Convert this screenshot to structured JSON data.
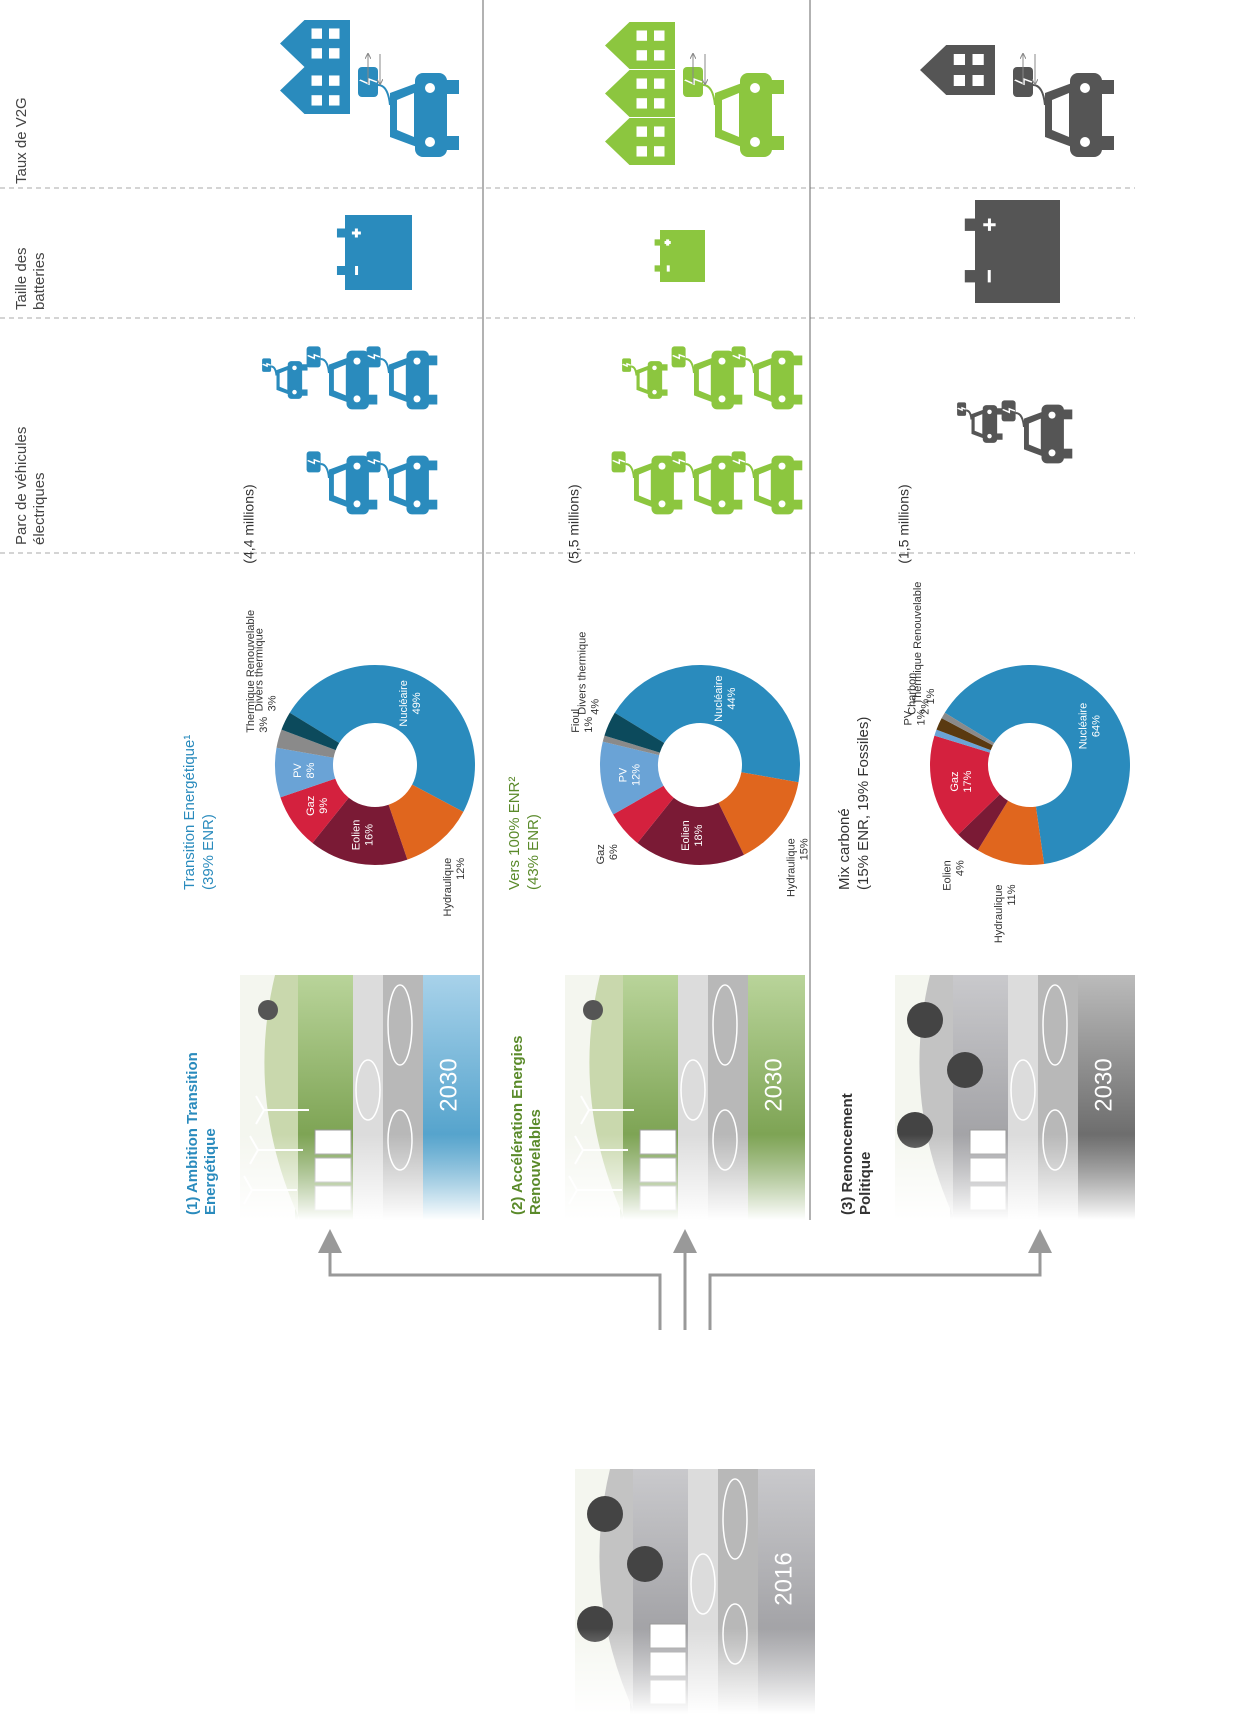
{
  "headers": [
    [
      "Parc de véhicules",
      "électriques"
    ],
    [
      "Taille des",
      "batteries"
    ],
    [
      "Taux de V2G"
    ]
  ],
  "start_year": "2016",
  "scenarios": [
    {
      "title": [
        "(1) Ambition Transition",
        "Energétique"
      ],
      "year": "2030",
      "fleet": "(4,4 millions)"
    },
    {
      "title": [
        "(2) Accélération Energies",
        "Renouvelables"
      ],
      "year": "2030",
      "fleet": "(5,5 millions)"
    },
    {
      "title": [
        "(3) Renoncement",
        "Politique"
      ],
      "year": "2030",
      "fleet": "(1,5 millions)"
    }
  ],
  "chart_data": [
    {
      "type": "pie",
      "title": "Transition Energétique¹",
      "subtitle": "(39% ENR)",
      "categories": [
        "Nucléaire",
        "Hydraulique",
        "Eolien",
        "Gaz",
        "PV",
        "Thermique Renouvelable",
        "Divers thermique"
      ],
      "values": [
        49,
        12,
        16,
        9,
        8,
        3,
        3
      ],
      "value_labels": [
        "49%",
        "12%",
        "16%",
        "9%",
        "8%",
        "3%",
        "3%"
      ],
      "colors": [
        "#2a8bbd",
        "#e0661e",
        "#7a1a35",
        "#d4213e",
        "#6aa3d6",
        "#8a8a8a",
        "#0c4a5c"
      ]
    },
    {
      "type": "pie",
      "title": "Vers 100% ENR²",
      "subtitle": "(43% ENR)",
      "categories": [
        "Nucléaire",
        "Hydraulique",
        "Eolien",
        "Gaz",
        "PV",
        "Fioul",
        "Divers thermique"
      ],
      "values": [
        44,
        15,
        18,
        6,
        12,
        1,
        4
      ],
      "value_labels": [
        "44%",
        "15%",
        "18%",
        "6%",
        "12%",
        "1%",
        "4%"
      ],
      "colors": [
        "#2a8bbd",
        "#e0661e",
        "#7a1a35",
        "#d4213e",
        "#6aa3d6",
        "#8a8a8a",
        "#0c4a5c"
      ]
    },
    {
      "type": "pie",
      "title": "Mix carboné",
      "subtitle": "(15% ENR, 19% Fossiles)",
      "categories": [
        "Nucléaire",
        "Hydraulique",
        "Eolien",
        "Gaz",
        "PV",
        "Charbon",
        "Thermique Renouvelable"
      ],
      "values": [
        64,
        11,
        4,
        17,
        1,
        2,
        1
      ],
      "value_labels": [
        "64%",
        "11%",
        "4%",
        "17%",
        "1%",
        "2%",
        "1%"
      ],
      "colors": [
        "#2a8bbd",
        "#e0661e",
        "#7a1a35",
        "#d4213e",
        "#6aa3d6",
        "#5a3a10",
        "#8a8a8a"
      ]
    }
  ]
}
